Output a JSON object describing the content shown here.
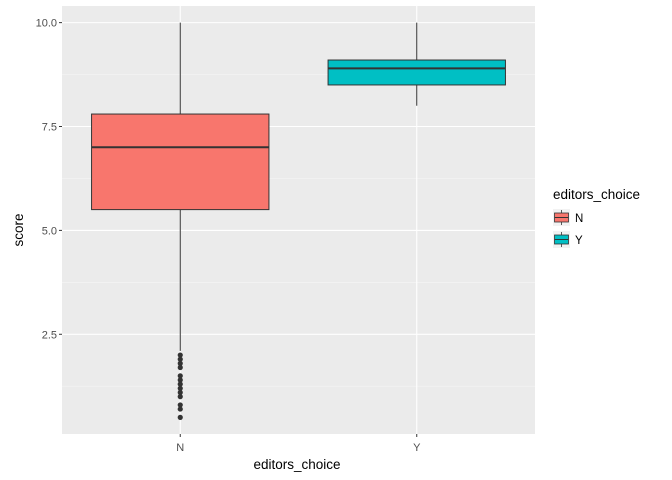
{
  "chart_data": {
    "type": "boxplot",
    "title": "",
    "xlabel": "editors_choice",
    "ylabel": "score",
    "categories": [
      "N",
      "Y"
    ],
    "ylim": [
      0.1,
      10.4
    ],
    "yticks": [
      2.5,
      5.0,
      7.5,
      10.0
    ],
    "ytick_labels": [
      "2.5-",
      "5.0-",
      "7.5-",
      "10.0-"
    ],
    "grid": true,
    "legend": {
      "title": "editors_choice",
      "position": "right",
      "entries": [
        "N",
        "Y"
      ]
    },
    "colors": {
      "N": "#f8766d",
      "Y": "#00bfc4",
      "panel_background": "#ebebeb",
      "grid_major": "#ffffff",
      "grid_minor": "#f5f5f5",
      "box_outline": "#333333"
    },
    "boxes": [
      {
        "category": "N",
        "whisker_low": 2.1,
        "q1": 5.5,
        "median": 7.0,
        "q3": 7.8,
        "whisker_high": 10.0,
        "outliers": [
          0.5,
          0.7,
          0.8,
          1.0,
          1.1,
          1.2,
          1.3,
          1.4,
          1.5,
          1.7,
          1.8,
          1.9,
          2.0
        ]
      },
      {
        "category": "Y",
        "whisker_low": 8.0,
        "q1": 8.5,
        "median": 8.9,
        "q3": 9.1,
        "whisker_high": 10.0,
        "outliers": []
      }
    ]
  }
}
